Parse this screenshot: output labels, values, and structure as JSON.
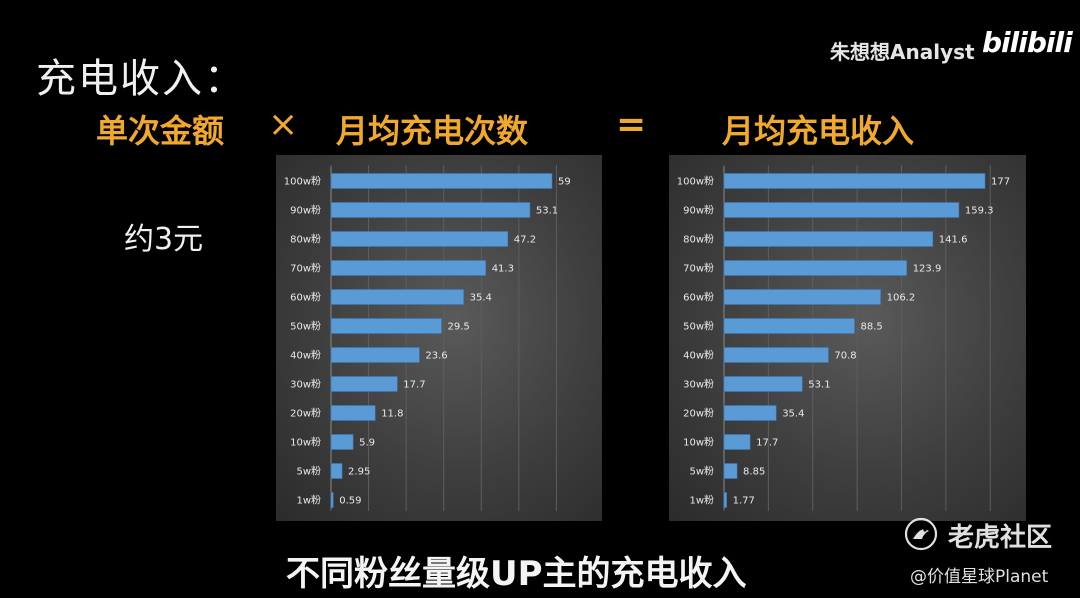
{
  "title": "充电收入：",
  "formula": {
    "part1": "单次金额",
    "times": "×",
    "part2": "月均充电次数",
    "equals": "=",
    "result": "月均充电收入"
  },
  "price_note": "约3元",
  "watermark": {
    "author": "朱想想Analyst",
    "logo": "bilibili"
  },
  "subtitle": "不同粉丝量级UP主的充电收入",
  "footer": {
    "source_name": "老虎社区",
    "handle": "@价值星球Planet"
  },
  "colors": {
    "bar_fill": "#5b9bd5",
    "bar_edge": "#3a78b8",
    "formula": "#f0a92c",
    "panel_bg": "#444444"
  },
  "chart_data": [
    {
      "type": "bar",
      "orientation": "horizontal",
      "categories": [
        "100w粉",
        "90w粉",
        "80w粉",
        "70w粉",
        "60w粉",
        "50w粉",
        "40w粉",
        "30w粉",
        "20w粉",
        "10w粉",
        "5w粉",
        "1w粉"
      ],
      "values": [
        59,
        53.1,
        47.2,
        41.3,
        35.4,
        29.5,
        23.6,
        17.7,
        11.8,
        5.9,
        2.95,
        0.59
      ],
      "labels": [
        "59",
        "53.1",
        "47.2",
        "41.3",
        "35.4",
        "29.5",
        "23.6",
        "17.7",
        "11.8",
        "5.9",
        "2.95",
        "0.59"
      ],
      "xlim": [
        0,
        59
      ],
      "grid": true,
      "data_labels": true
    },
    {
      "type": "bar",
      "orientation": "horizontal",
      "categories": [
        "100w粉",
        "90w粉",
        "80w粉",
        "70w粉",
        "60w粉",
        "50w粉",
        "40w粉",
        "30w粉",
        "20w粉",
        "10w粉",
        "5w粉",
        "1w粉"
      ],
      "values": [
        177,
        159.3,
        141.6,
        123.9,
        106.2,
        88.5,
        70.8,
        53.1,
        35.4,
        17.7,
        8.85,
        1.77
      ],
      "labels": [
        "177",
        "159.3",
        "141.6",
        "123.9",
        "106.2",
        "88.5",
        "70.8",
        "53.1",
        "35.4",
        "17.7",
        "8.85",
        "1.77"
      ],
      "xlim": [
        0,
        177
      ],
      "grid": true,
      "data_labels": true
    }
  ]
}
